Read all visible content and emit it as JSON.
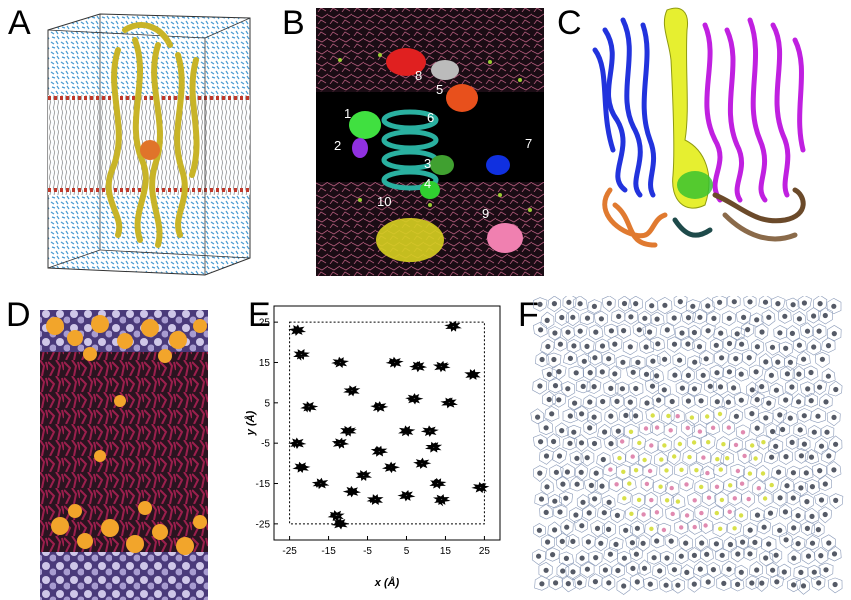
{
  "panels": {
    "a": {
      "label": "A"
    },
    "b": {
      "label": "B",
      "markers": [
        "1",
        "2",
        "3",
        "4",
        "5",
        "6",
        "7",
        "8",
        "9",
        "10"
      ]
    },
    "c": {
      "label": "C"
    },
    "d": {
      "label": "D"
    },
    "e": {
      "label": "E"
    },
    "f": {
      "label": "F"
    }
  },
  "colors": {
    "water": "#4a9bd1",
    "protein_a": "#c8b428",
    "lipid_head": "#c0392b",
    "panel_b_bg": "#000000",
    "lipid_d": "#9c1f4d",
    "head_d": "#f2a52b",
    "helix_blue": "#2233dd",
    "helix_magenta": "#c020e0",
    "tunnel": "#e6ef30",
    "base_orange": "#e07a30",
    "base_brown": "#6b4a2a"
  },
  "chart_data": {
    "type": "scatter",
    "title": "",
    "xlabel": "x (Å)",
    "ylabel": "y (Å)",
    "xlim": [
      -29,
      29
    ],
    "ylim": [
      -29,
      29
    ],
    "xticks": [
      "-25",
      "-15",
      "-5",
      "5",
      "15",
      "25"
    ],
    "yticks": [
      "25",
      "15",
      "5",
      "-5",
      "-15",
      "-25"
    ],
    "box": [
      -25,
      25
    ],
    "clusters": [
      [
        -23,
        23
      ],
      [
        17,
        24
      ],
      [
        -22,
        17
      ],
      [
        -12,
        15
      ],
      [
        2,
        15
      ],
      [
        8,
        14
      ],
      [
        14,
        14
      ],
      [
        22,
        12
      ],
      [
        -9,
        8
      ],
      [
        -20,
        4
      ],
      [
        7,
        6
      ],
      [
        -2,
        4
      ],
      [
        16,
        5
      ],
      [
        -10,
        -2
      ],
      [
        5,
        -2
      ],
      [
        11,
        -2
      ],
      [
        -23,
        -5
      ],
      [
        -12,
        -5
      ],
      [
        -2,
        -7
      ],
      [
        12,
        -6
      ],
      [
        -22,
        -11
      ],
      [
        1,
        -11
      ],
      [
        9,
        -10
      ],
      [
        -17,
        -15
      ],
      [
        -6,
        -13
      ],
      [
        13,
        -15
      ],
      [
        24,
        -16
      ],
      [
        -9,
        -17
      ],
      [
        5,
        -18
      ],
      [
        14,
        -19
      ],
      [
        -3,
        -19
      ],
      [
        -13,
        -23
      ],
      [
        -12,
        -25
      ]
    ]
  }
}
